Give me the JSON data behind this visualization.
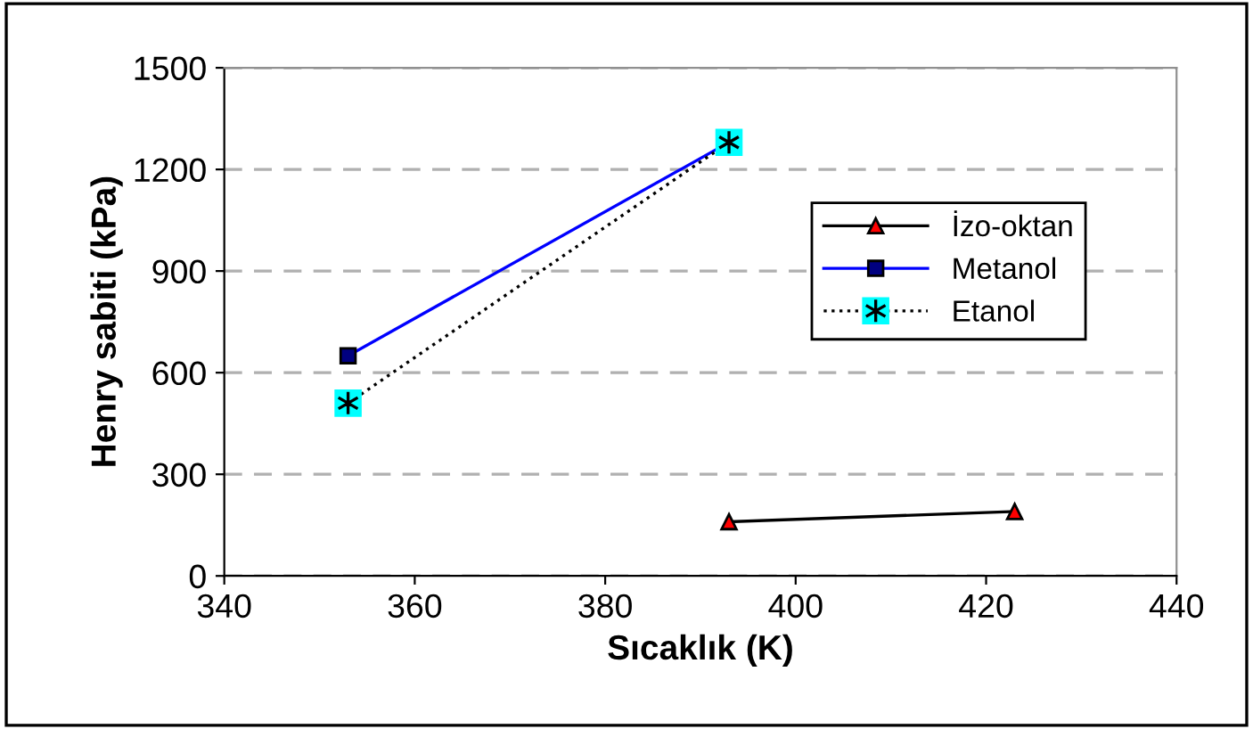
{
  "chart_data": {
    "type": "line",
    "xlabel": "Sıcaklık (K)",
    "ylabel": "Henry sabiti (kPa)",
    "xlim": [
      340,
      440
    ],
    "xticks": [
      340,
      360,
      380,
      400,
      420,
      440
    ],
    "ylim": [
      0,
      1500
    ],
    "yticks": [
      0,
      300,
      600,
      900,
      1200,
      1500
    ],
    "grid": "y",
    "legend": "right",
    "series": [
      {
        "name": "İzo-oktan",
        "color": "#000000",
        "colors": [
          "#ff0000",
          "#ff0000"
        ],
        "marker": "triangle",
        "line_style": "solid",
        "x": [
          393,
          423
        ],
        "values": [
          160,
          190
        ]
      },
      {
        "name": "Metanol",
        "color": "#0000ff",
        "colors": [
          "#000080",
          "#000080"
        ],
        "marker": "square",
        "line_style": "solid",
        "x": [
          353,
          393
        ],
        "values": [
          650,
          1280
        ]
      },
      {
        "name": "Etanol",
        "color": "#000000",
        "colors": [
          "#00ffff",
          "#00ffff"
        ],
        "marker": "square",
        "line_style": "dotted",
        "x": [
          353,
          393
        ],
        "values": [
          510,
          1280
        ]
      }
    ]
  }
}
